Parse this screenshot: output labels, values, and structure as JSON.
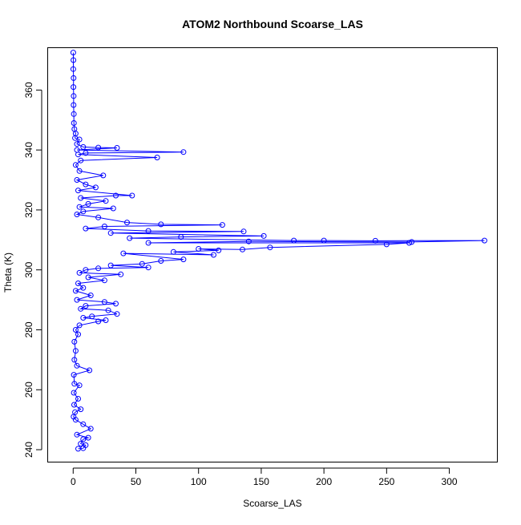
{
  "chart_data": {
    "type": "line",
    "title": "ATOM2 Northbound Scoarse_LAS",
    "xlabel": "Scoarse_LAS",
    "ylabel": "Theta (K)",
    "xlim": [
      -20,
      338
    ],
    "ylim": [
      236,
      374
    ],
    "xticks": [
      0,
      50,
      100,
      150,
      200,
      250,
      300
    ],
    "yticks": [
      240,
      260,
      280,
      300,
      320,
      340,
      360
    ],
    "grid": false,
    "legend": "none",
    "marker": "open-circle",
    "color": "#0000ff",
    "series": [
      {
        "points": [
          [
            0.1,
            372.5
          ],
          [
            0.2,
            370.0
          ],
          [
            0.1,
            367.0
          ],
          [
            0.3,
            364.0
          ],
          [
            0.2,
            361.0
          ],
          [
            0.4,
            358.0
          ],
          [
            0.3,
            355.0
          ],
          [
            0.5,
            352.0
          ],
          [
            0.6,
            349.0
          ],
          [
            1.0,
            347.0
          ],
          [
            2.0,
            345.5
          ],
          [
            1.5,
            344.0
          ],
          [
            5.0,
            343.5
          ],
          [
            3.0,
            342.0
          ],
          [
            8.0,
            341.0
          ],
          [
            20.0,
            340.8
          ],
          [
            35.0,
            340.7
          ],
          [
            3.0,
            340.0
          ],
          [
            88.0,
            339.3
          ],
          [
            10.0,
            339.0
          ],
          [
            4.0,
            338.5
          ],
          [
            67.0,
            337.5
          ],
          [
            6.0,
            336.5
          ],
          [
            2.0,
            335.0
          ],
          [
            5.0,
            333.0
          ],
          [
            24.0,
            331.5
          ],
          [
            3.0,
            330.0
          ],
          [
            10.0,
            328.5
          ],
          [
            18.0,
            327.5
          ],
          [
            4.0,
            326.5
          ],
          [
            47.0,
            324.8
          ],
          [
            34.0,
            324.8
          ],
          [
            6.0,
            324.0
          ],
          [
            26.0,
            323.0
          ],
          [
            12.0,
            322.0
          ],
          [
            5.0,
            321.0
          ],
          [
            32.0,
            320.5
          ],
          [
            8.0,
            319.5
          ],
          [
            3.0,
            318.5
          ],
          [
            20.0,
            317.5
          ],
          [
            43.0,
            315.8
          ],
          [
            70.0,
            315.2
          ],
          [
            119.0,
            315.0
          ],
          [
            25.0,
            314.5
          ],
          [
            10.0,
            313.8
          ],
          [
            60.0,
            313.0
          ],
          [
            136.0,
            312.8
          ],
          [
            30.0,
            312.3
          ],
          [
            152.0,
            311.3
          ],
          [
            86.0,
            311.0
          ],
          [
            45.0,
            310.6
          ],
          [
            176.0,
            309.8
          ],
          [
            200.0,
            309.8
          ],
          [
            241.0,
            309.7
          ],
          [
            328.0,
            309.8
          ],
          [
            270.0,
            309.3
          ],
          [
            140.0,
            309.5
          ],
          [
            60.0,
            309.0
          ],
          [
            268.0,
            309.0
          ],
          [
            250.0,
            308.5
          ],
          [
            157.0,
            307.5
          ],
          [
            135.0,
            306.8
          ],
          [
            100.0,
            307.0
          ],
          [
            116.0,
            306.5
          ],
          [
            80.0,
            306.0
          ],
          [
            112.0,
            305.0
          ],
          [
            40.0,
            305.5
          ],
          [
            88.0,
            303.5
          ],
          [
            70.0,
            303.0
          ],
          [
            55.0,
            302.0
          ],
          [
            30.0,
            301.5
          ],
          [
            60.0,
            300.8
          ],
          [
            20.0,
            300.5
          ],
          [
            10.0,
            300.0
          ],
          [
            5.0,
            299.0
          ],
          [
            38.0,
            298.5
          ],
          [
            12.0,
            297.5
          ],
          [
            25.0,
            296.5
          ],
          [
            4.0,
            295.5
          ],
          [
            8.0,
            294.0
          ],
          [
            2.0,
            293.0
          ],
          [
            14.0,
            291.5
          ],
          [
            3.0,
            290.0
          ],
          [
            25.0,
            289.3
          ],
          [
            34.0,
            288.7
          ],
          [
            10.0,
            288.0
          ],
          [
            6.0,
            287.0
          ],
          [
            28.0,
            286.5
          ],
          [
            35.0,
            285.3
          ],
          [
            15.0,
            284.5
          ],
          [
            8.0,
            284.0
          ],
          [
            26.0,
            283.2
          ],
          [
            20.0,
            282.8
          ],
          [
            5.0,
            281.5
          ],
          [
            2.0,
            280.0
          ],
          [
            4.0,
            278.5
          ],
          [
            1.0,
            276.0
          ],
          [
            2.0,
            273.0
          ],
          [
            1.0,
            270.0
          ],
          [
            3.0,
            268.0
          ],
          [
            13.0,
            266.5
          ],
          [
            0.5,
            265.0
          ],
          [
            1.0,
            262.0
          ],
          [
            5.0,
            261.5
          ],
          [
            0.5,
            259.0
          ],
          [
            4.0,
            257.0
          ],
          [
            0.8,
            255.0
          ],
          [
            6.0,
            253.5
          ],
          [
            1.5,
            252.5
          ],
          [
            0.3,
            251.0
          ],
          [
            2.0,
            250.0
          ],
          [
            8.0,
            248.5
          ],
          [
            14.0,
            247.0
          ],
          [
            3.0,
            245.0
          ],
          [
            12.0,
            244.0
          ],
          [
            8.0,
            243.5
          ],
          [
            6.0,
            242.0
          ],
          [
            10.0,
            241.5
          ],
          [
            8.0,
            240.5
          ],
          [
            4.0,
            240.3
          ]
        ]
      }
    ]
  }
}
